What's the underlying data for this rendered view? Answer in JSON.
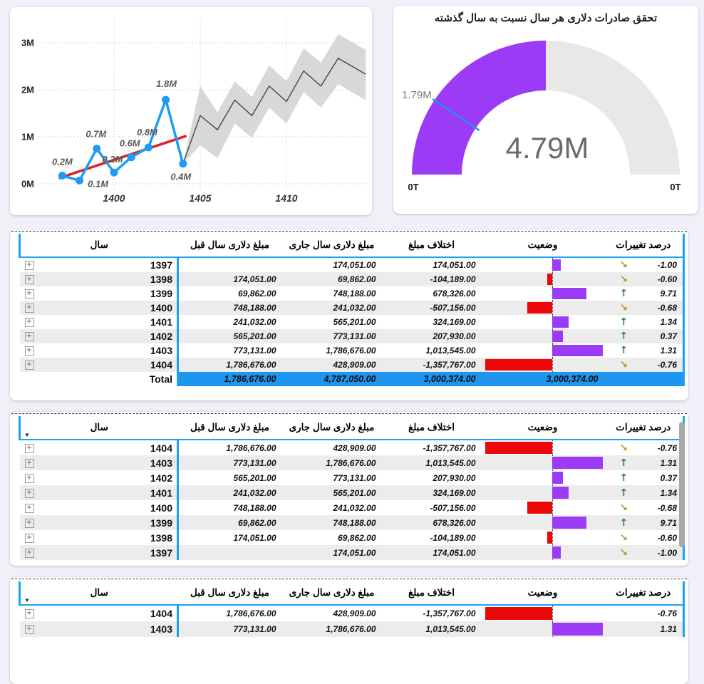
{
  "gauge": {
    "title": "تحقق صادرات دلاری هر سال نسبت به سال گذشته"
  },
  "table_headers": {
    "year": "سال",
    "prev": "مبلغ دلاری سال قبل",
    "curr": "مبلغ دلاری سال جاری",
    "diff": "اختلاف مبلغ",
    "status": "وضعیت",
    "pct": "درصد تغییرات"
  },
  "icons": {
    "expand": "+",
    "sort_desc": "▼",
    "arrow_up": "↑",
    "arrow_down": "↘"
  },
  "colors": {
    "accent_blue": "#18A2F3",
    "total_row_blue": "#1E96F0",
    "bar_positive_purple": "#9B3BF6",
    "bar_negative_red": "#EC0808",
    "gauge_fill_purple": "#9B3BF6",
    "gauge_track_gray": "#E8E8E6",
    "gauge_target_blue": "#2490EF",
    "line_blue": "#1E9BF5",
    "trend_red": "#E02020",
    "forecast_band_gray": "#D4D4D4",
    "up_green": "#2E7D4F",
    "down_gold": "#C0912C"
  },
  "tables": [
    {
      "sorted": false,
      "scrollbar": false,
      "rows": [
        {
          "year": "1397",
          "prev": "",
          "curr": "174,051.00",
          "diff": "174,051.00",
          "bar": 174051,
          "pct": "-1.00",
          "dir": "down"
        },
        {
          "year": "1398",
          "prev": "174,051.00",
          "curr": "69,862.00",
          "diff": "-104,189.00",
          "bar": -104189,
          "pct": "-0.60",
          "dir": "down"
        },
        {
          "year": "1399",
          "prev": "69,862.00",
          "curr": "748,188.00",
          "diff": "678,326.00",
          "bar": 678326,
          "pct": "9.71",
          "dir": "up"
        },
        {
          "year": "1400",
          "prev": "748,188.00",
          "curr": "241,032.00",
          "diff": "-507,156.00",
          "bar": -507156,
          "pct": "-0.68",
          "dir": "down"
        },
        {
          "year": "1401",
          "prev": "241,032.00",
          "curr": "565,201.00",
          "diff": "324,169.00",
          "bar": 324169,
          "pct": "1.34",
          "dir": "up"
        },
        {
          "year": "1402",
          "prev": "565,201.00",
          "curr": "773,131.00",
          "diff": "207,930.00",
          "bar": 207930,
          "pct": "0.37",
          "dir": "up"
        },
        {
          "year": "1403",
          "prev": "773,131.00",
          "curr": "1,786,676.00",
          "diff": "1,013,545.00",
          "bar": 1013545,
          "pct": "1.31",
          "dir": "up"
        },
        {
          "year": "1404",
          "prev": "1,786,676.00",
          "curr": "428,909.00",
          "diff": "-1,357,767.00",
          "bar": -1357767,
          "pct": "-0.76",
          "dir": "down"
        }
      ],
      "total": {
        "label": "Total",
        "prev": "1,786,676.00",
        "curr": "4,787,050.00",
        "diff": "3,000,374.00",
        "status_text": "3,000,374.00"
      }
    },
    {
      "sorted": true,
      "scrollbar": true,
      "rows": [
        {
          "year": "1404",
          "prev": "1,786,676.00",
          "curr": "428,909.00",
          "diff": "-1,357,767.00",
          "bar": -1357767,
          "pct": "-0.76",
          "dir": "down"
        },
        {
          "year": "1403",
          "prev": "773,131.00",
          "curr": "1,786,676.00",
          "diff": "1,013,545.00",
          "bar": 1013545,
          "pct": "1.31",
          "dir": "up"
        },
        {
          "year": "1402",
          "prev": "565,201.00",
          "curr": "773,131.00",
          "diff": "207,930.00",
          "bar": 207930,
          "pct": "0.37",
          "dir": "up"
        },
        {
          "year": "1401",
          "prev": "241,032.00",
          "curr": "565,201.00",
          "diff": "324,169.00",
          "bar": 324169,
          "pct": "1.34",
          "dir": "up"
        },
        {
          "year": "1400",
          "prev": "748,188.00",
          "curr": "241,032.00",
          "diff": "-507,156.00",
          "bar": -507156,
          "pct": "-0.68",
          "dir": "down"
        },
        {
          "year": "1399",
          "prev": "69,862.00",
          "curr": "748,188.00",
          "diff": "678,326.00",
          "bar": 678326,
          "pct": "9.71",
          "dir": "up"
        },
        {
          "year": "1398",
          "prev": "174,051.00",
          "curr": "69,862.00",
          "diff": "-104,189.00",
          "bar": -104189,
          "pct": "-0.60",
          "dir": "down"
        },
        {
          "year": "1397",
          "prev": "",
          "curr": "174,051.00",
          "diff": "174,051.00",
          "bar": 174051,
          "pct": "-1.00",
          "dir": "down"
        }
      ],
      "total": null
    },
    {
      "sorted": true,
      "scrollbar": false,
      "rows": [
        {
          "year": "1404",
          "prev": "1,786,676.00",
          "curr": "428,909.00",
          "diff": "-1,357,767.00",
          "bar": -1357767,
          "pct": "-0.76",
          "dir": ""
        },
        {
          "year": "1403",
          "prev": "773,131.00",
          "curr": "1,786,676.00",
          "diff": "1,013,545.00",
          "bar": 1013545,
          "pct": "1.31",
          "dir": ""
        }
      ],
      "total": null
    }
  ],
  "chart_data": [
    {
      "type": "line",
      "title": "",
      "xlabel": "",
      "ylabel": "",
      "x_years": [
        1397,
        1398,
        1399,
        1400,
        1401,
        1402,
        1403,
        1404
      ],
      "actual_values": [
        174051,
        69862,
        748188,
        241032,
        565201,
        773131,
        1786676,
        428909
      ],
      "actual_values_M": [
        0.174051,
        0.069862,
        0.748188,
        0.241032,
        0.565201,
        0.773131,
        1.786676,
        0.428909
      ],
      "point_labels": [
        "0.2M",
        "0.1M",
        "0.7M",
        "0.2M",
        "0.6M",
        "0.8M",
        "1.8M",
        "0.4M"
      ],
      "trend": {
        "x1": 1396.8,
        "v1": 0.12,
        "x2": 1404.2,
        "v2": 1.02
      },
      "forecast": {
        "x": [
          1405,
          1406,
          1407,
          1408,
          1409,
          1410,
          1411,
          1412,
          1413,
          1414.6
        ],
        "line": [
          1.45,
          1.15,
          1.78,
          1.45,
          2.08,
          1.75,
          2.4,
          2.08,
          2.67,
          2.33
        ],
        "upper": [
          2.08,
          1.52,
          2.18,
          1.85,
          2.52,
          2.18,
          2.88,
          2.58,
          3.18,
          2.85
        ],
        "lower": [
          0.82,
          0.55,
          1.28,
          0.98,
          1.62,
          1.28,
          1.95,
          1.62,
          2.12,
          1.78
        ]
      },
      "yticks": [
        "0M",
        "1M",
        "2M",
        "3M"
      ],
      "xticks": [
        "1400",
        "1405",
        "1410"
      ],
      "ylim_M": [
        0,
        3.5
      ],
      "grid": true,
      "legend": false
    },
    {
      "type": "gauge",
      "title": "تحقق صادرات دلاری هر سال نسبت به سال گذشته",
      "value_label": "4.79M",
      "target_label": "1.79M",
      "min_label": "0T",
      "max_label": "0T",
      "fill_fraction": 0.5,
      "target_fraction": 0.187
    }
  ]
}
